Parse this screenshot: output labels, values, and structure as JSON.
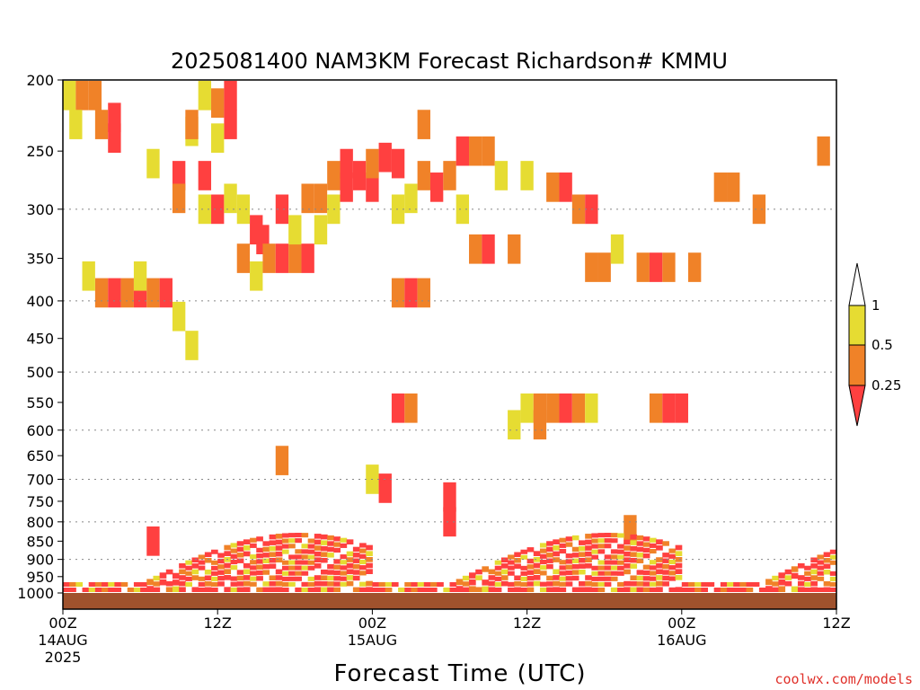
{
  "chart_data": {
    "type": "heatmap",
    "title": "2025081400 NAM3KM Forecast Richardson# KMMU",
    "xlabel": "Forecast Time (UTC)",
    "ylabel": "",
    "y_scale": "log-pressure",
    "ylim": [
      1000,
      200
    ],
    "xlim_hours": [
      0,
      60
    ],
    "x_unit": "hours since 2025-08-14 00Z",
    "y_ticks": [
      200,
      250,
      300,
      350,
      400,
      450,
      500,
      550,
      600,
      650,
      700,
      750,
      800,
      850,
      900,
      950,
      1000
    ],
    "y_gridlines": [
      300,
      400,
      500,
      600,
      700,
      800,
      900
    ],
    "x_ticks": [
      {
        "hour": 0,
        "line1": "00Z",
        "line2": "14AUG",
        "line3": "2025"
      },
      {
        "hour": 12,
        "line1": "12Z",
        "line2": "",
        "line3": ""
      },
      {
        "hour": 24,
        "line1": "00Z",
        "line2": "15AUG",
        "line3": ""
      },
      {
        "hour": 36,
        "line1": "12Z",
        "line2": "",
        "line3": ""
      },
      {
        "hour": 48,
        "line1": "00Z",
        "line2": "16AUG",
        "line3": ""
      },
      {
        "hour": 60,
        "line1": "12Z",
        "line2": "",
        "line3": ""
      }
    ],
    "legend": {
      "placement": "right",
      "levels": [
        "1",
        "0.5",
        "0.25"
      ],
      "colors": {
        "lt_025": "#ff4040",
        "025_05": "#f08228",
        "05_1": "#e6dc32"
      }
    },
    "ground_color": "#a0522d",
    "cells": [
      {
        "h": 0.5,
        "p": 210,
        "c": "yellow"
      },
      {
        "h": 1.5,
        "p": 210,
        "c": "orange"
      },
      {
        "h": 2.5,
        "p": 210,
        "c": "orange"
      },
      {
        "h": 3,
        "p": 230,
        "c": "orange"
      },
      {
        "h": 4,
        "p": 225,
        "c": "red"
      },
      {
        "h": 4,
        "p": 240,
        "c": "red"
      },
      {
        "h": 1,
        "p": 230,
        "c": "yellow"
      },
      {
        "h": 7,
        "p": 260,
        "c": "yellow"
      },
      {
        "h": 10,
        "p": 235,
        "c": "yellow"
      },
      {
        "h": 9,
        "p": 270,
        "c": "red"
      },
      {
        "h": 9,
        "p": 290,
        "c": "orange"
      },
      {
        "h": 10,
        "p": 230,
        "c": "orange"
      },
      {
        "h": 11,
        "p": 210,
        "c": "yellow"
      },
      {
        "h": 12,
        "p": 215,
        "c": "orange"
      },
      {
        "h": 13,
        "p": 210,
        "c": "red"
      },
      {
        "h": 13,
        "p": 230,
        "c": "red"
      },
      {
        "h": 12,
        "p": 240,
        "c": "yellow"
      },
      {
        "h": 11,
        "p": 270,
        "c": "red"
      },
      {
        "h": 12,
        "p": 300,
        "c": "red"
      },
      {
        "h": 11,
        "p": 300,
        "c": "yellow"
      },
      {
        "h": 13,
        "p": 290,
        "c": "yellow"
      },
      {
        "h": 14,
        "p": 300,
        "c": "yellow"
      },
      {
        "h": 15,
        "p": 320,
        "c": "red"
      },
      {
        "h": 15.5,
        "p": 330,
        "c": "red"
      },
      {
        "h": 14,
        "p": 350,
        "c": "orange"
      },
      {
        "h": 15,
        "p": 370,
        "c": "yellow"
      },
      {
        "h": 16,
        "p": 350,
        "c": "orange"
      },
      {
        "h": 17,
        "p": 300,
        "c": "red"
      },
      {
        "h": 17,
        "p": 350,
        "c": "red"
      },
      {
        "h": 18,
        "p": 350,
        "c": "orange"
      },
      {
        "h": 19,
        "p": 350,
        "c": "red"
      },
      {
        "h": 18,
        "p": 320,
        "c": "yellow"
      },
      {
        "h": 19,
        "p": 290,
        "c": "orange"
      },
      {
        "h": 20,
        "p": 290,
        "c": "orange"
      },
      {
        "h": 20,
        "p": 320,
        "c": "yellow"
      },
      {
        "h": 21,
        "p": 270,
        "c": "orange"
      },
      {
        "h": 21,
        "p": 300,
        "c": "yellow"
      },
      {
        "h": 22,
        "p": 280,
        "c": "red"
      },
      {
        "h": 23,
        "p": 270,
        "c": "red"
      },
      {
        "h": 24,
        "p": 280,
        "c": "red"
      },
      {
        "h": 22,
        "p": 260,
        "c": "red"
      },
      {
        "h": 24,
        "p": 260,
        "c": "orange"
      },
      {
        "h": 25,
        "p": 255,
        "c": "red"
      },
      {
        "h": 26,
        "p": 260,
        "c": "red"
      },
      {
        "h": 26,
        "p": 300,
        "c": "yellow"
      },
      {
        "h": 27,
        "p": 290,
        "c": "yellow"
      },
      {
        "h": 28,
        "p": 270,
        "c": "orange"
      },
      {
        "h": 29,
        "p": 280,
        "c": "red"
      },
      {
        "h": 28,
        "p": 230,
        "c": "orange"
      },
      {
        "h": 30,
        "p": 270,
        "c": "orange"
      },
      {
        "h": 31,
        "p": 250,
        "c": "red"
      },
      {
        "h": 32,
        "p": 250,
        "c": "orange"
      },
      {
        "h": 33,
        "p": 250,
        "c": "orange"
      },
      {
        "h": 34,
        "p": 270,
        "c": "yellow"
      },
      {
        "h": 31,
        "p": 300,
        "c": "yellow"
      },
      {
        "h": 32,
        "p": 340,
        "c": "orange"
      },
      {
        "h": 33,
        "p": 340,
        "c": "red"
      },
      {
        "h": 35,
        "p": 340,
        "c": "orange"
      },
      {
        "h": 36,
        "p": 270,
        "c": "yellow"
      },
      {
        "h": 38,
        "p": 280,
        "c": "orange"
      },
      {
        "h": 39,
        "p": 280,
        "c": "red"
      },
      {
        "h": 40,
        "p": 300,
        "c": "orange"
      },
      {
        "h": 41,
        "p": 300,
        "c": "red"
      },
      {
        "h": 41,
        "p": 360,
        "c": "orange"
      },
      {
        "h": 42,
        "p": 360,
        "c": "orange"
      },
      {
        "h": 43,
        "p": 340,
        "c": "yellow"
      },
      {
        "h": 45,
        "p": 360,
        "c": "orange"
      },
      {
        "h": 46,
        "p": 360,
        "c": "red"
      },
      {
        "h": 47,
        "p": 360,
        "c": "orange"
      },
      {
        "h": 49,
        "p": 360,
        "c": "orange"
      },
      {
        "h": 51,
        "p": 280,
        "c": "orange"
      },
      {
        "h": 52,
        "p": 280,
        "c": "orange"
      },
      {
        "h": 54,
        "p": 300,
        "c": "orange"
      },
      {
        "h": 59,
        "p": 250,
        "c": "orange"
      },
      {
        "h": 3,
        "p": 390,
        "c": "orange"
      },
      {
        "h": 4,
        "p": 390,
        "c": "red"
      },
      {
        "h": 5,
        "p": 390,
        "c": "orange"
      },
      {
        "h": 6,
        "p": 390,
        "c": "red"
      },
      {
        "h": 7,
        "p": 390,
        "c": "orange"
      },
      {
        "h": 8,
        "p": 390,
        "c": "red"
      },
      {
        "h": 2,
        "p": 370,
        "c": "yellow"
      },
      {
        "h": 6,
        "p": 370,
        "c": "yellow"
      },
      {
        "h": 9,
        "p": 420,
        "c": "yellow"
      },
      {
        "h": 10,
        "p": 460,
        "c": "yellow"
      },
      {
        "h": 26,
        "p": 390,
        "c": "orange"
      },
      {
        "h": 27,
        "p": 390,
        "c": "red"
      },
      {
        "h": 28,
        "p": 390,
        "c": "orange"
      },
      {
        "h": 26,
        "p": 560,
        "c": "red"
      },
      {
        "h": 27,
        "p": 560,
        "c": "orange"
      },
      {
        "h": 36,
        "p": 560,
        "c": "yellow"
      },
      {
        "h": 37,
        "p": 560,
        "c": "orange"
      },
      {
        "h": 38,
        "p": 560,
        "c": "orange"
      },
      {
        "h": 39,
        "p": 560,
        "c": "red"
      },
      {
        "h": 40,
        "p": 560,
        "c": "orange"
      },
      {
        "h": 41,
        "p": 560,
        "c": "yellow"
      },
      {
        "h": 46,
        "p": 560,
        "c": "orange"
      },
      {
        "h": 47,
        "p": 560,
        "c": "red"
      },
      {
        "h": 48,
        "p": 560,
        "c": "red"
      },
      {
        "h": 35,
        "p": 590,
        "c": "yellow"
      },
      {
        "h": 37,
        "p": 590,
        "c": "orange"
      },
      {
        "h": 17,
        "p": 660,
        "c": "orange"
      },
      {
        "h": 24,
        "p": 700,
        "c": "yellow"
      },
      {
        "h": 25,
        "p": 720,
        "c": "red"
      },
      {
        "h": 30,
        "p": 740,
        "c": "red"
      },
      {
        "h": 7,
        "p": 850,
        "c": "red"
      },
      {
        "h": 30,
        "p": 800,
        "c": "red"
      },
      {
        "h": 44,
        "p": 820,
        "c": "orange"
      }
    ]
  }
}
